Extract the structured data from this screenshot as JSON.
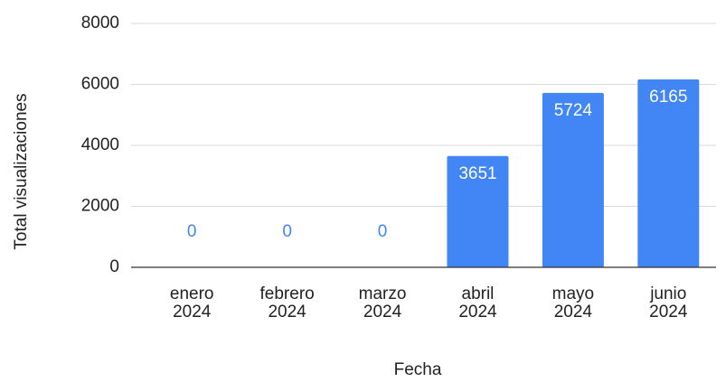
{
  "chart_data": {
    "type": "bar",
    "categories": [
      "enero 2024",
      "febrero 2024",
      "marzo 2024",
      "abril 2024",
      "mayo 2024",
      "junio 2024"
    ],
    "values": [
      0,
      0,
      0,
      3651,
      5724,
      6165
    ],
    "color": "#4285f4",
    "xlabel": "Fecha",
    "ylabel": "Total visualizaciones",
    "ylim": [
      0,
      8000
    ],
    "yticks": [
      0,
      2000,
      4000,
      6000,
      8000
    ],
    "grid": true
  }
}
